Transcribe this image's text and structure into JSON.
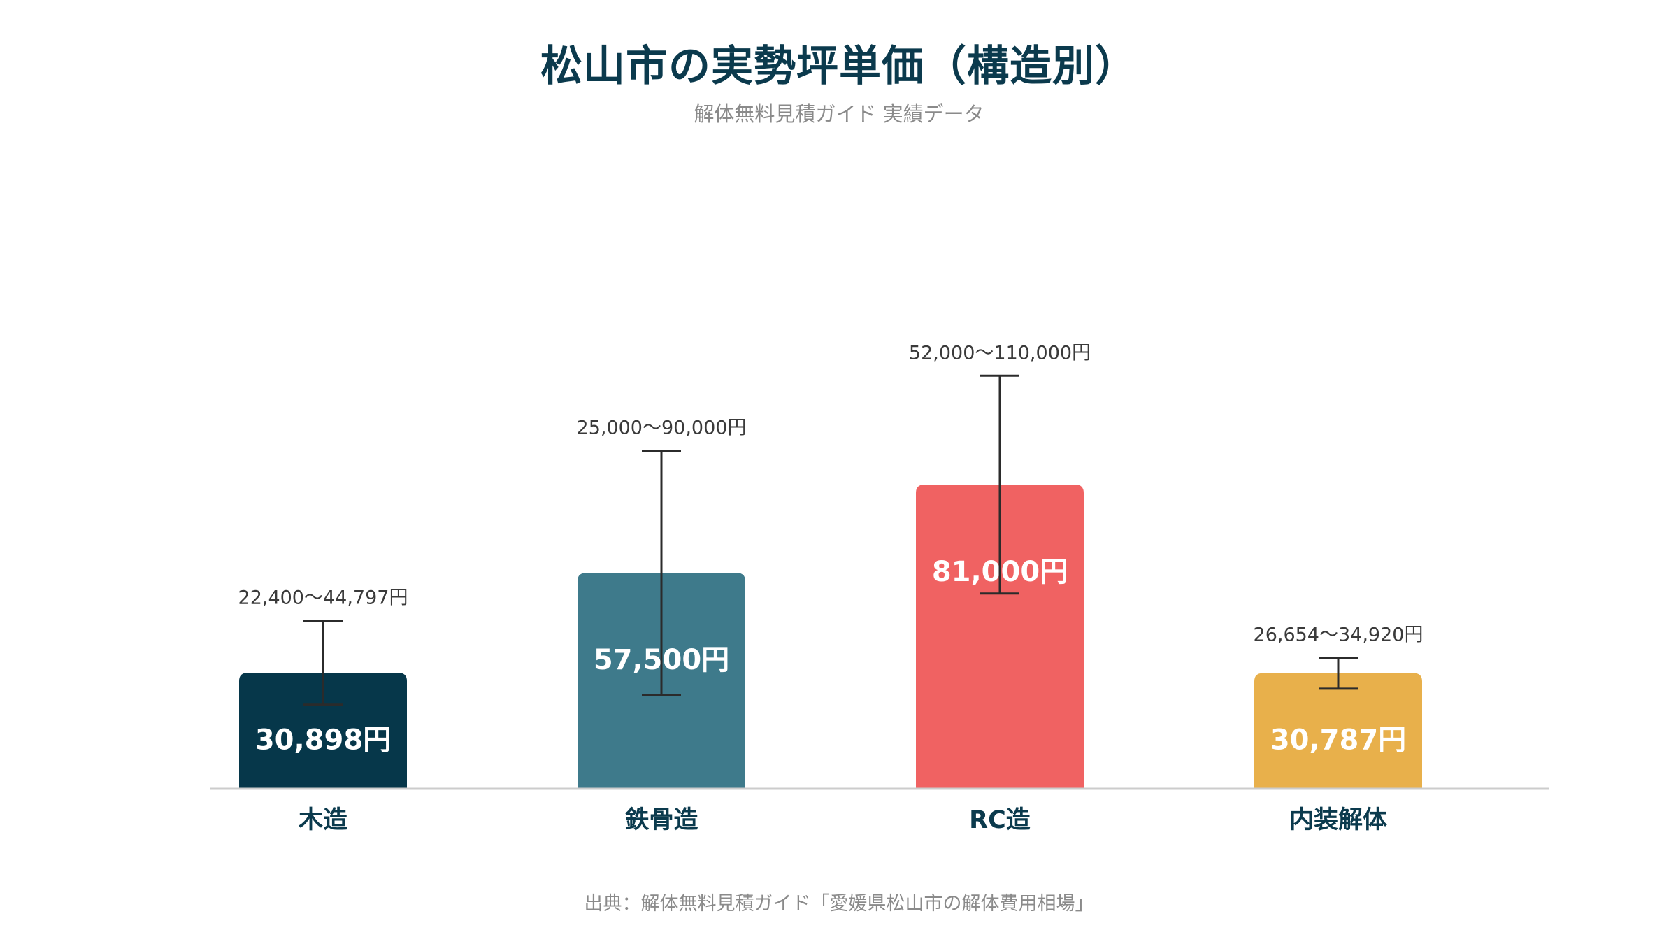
{
  "title": "松山市の実勢坪単価（構造別）",
  "subtitle": "解体無料見積ガイド 実績データ",
  "source": "出典：解体無料見積ガイド「愛媛県松山市の解体費用相場」",
  "chart_data": {
    "type": "bar",
    "title": "松山市の実勢坪単価（構造別）",
    "subtitle": "解体無料見積ガイド 実績データ",
    "categories": [
      "木造",
      "鉄骨造",
      "RC造",
      "内装解体"
    ],
    "values": [
      30898,
      57500,
      81000,
      30787
    ],
    "value_labels": [
      "30,898円",
      "57,500円",
      "81,000円",
      "30,787円"
    ],
    "ranges": [
      {
        "low": 22400,
        "high": 44797,
        "label": "22,400〜44,797円"
      },
      {
        "low": 25000,
        "high": 90000,
        "label": "25,000〜90,000円"
      },
      {
        "low": 52000,
        "high": 110000,
        "label": "52,000〜110,000円"
      },
      {
        "low": 26654,
        "high": 34920,
        "label": "26,654〜34,920円"
      }
    ],
    "colors": [
      "#06374a",
      "#3e7a8b",
      "#f06262",
      "#e8b04b"
    ],
    "ylim": [
      0,
      120000
    ],
    "grid": false,
    "legend": "none"
  }
}
